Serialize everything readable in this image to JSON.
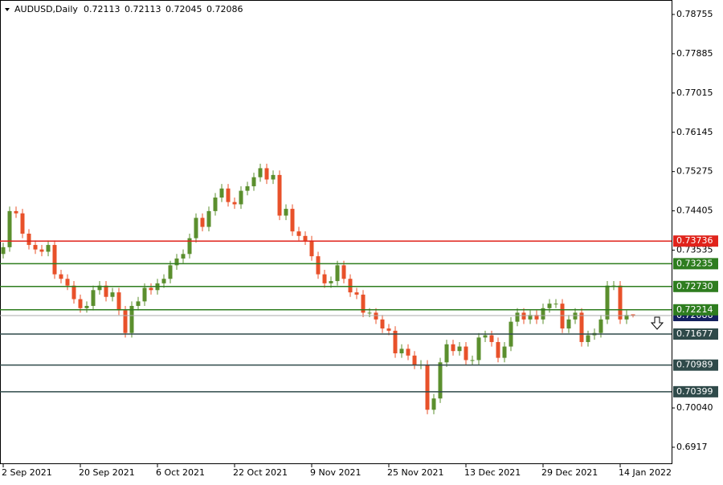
{
  "chart_data": {
    "type": "candlestick",
    "title": "AUDUSD,Daily",
    "categories": [
      "2 Sep 2021",
      null,
      null,
      null,
      null,
      null,
      null,
      null,
      null,
      null,
      null,
      null,
      "20 Sep 2021",
      null,
      null,
      null,
      null,
      null,
      null,
      null,
      null,
      null,
      null,
      null,
      "6 Oct 2021",
      null,
      null,
      null,
      null,
      null,
      null,
      null,
      null,
      null,
      null,
      null,
      "22 Oct 2021",
      null,
      null,
      null,
      null,
      null,
      null,
      null,
      null,
      null,
      null,
      null,
      "9 Nov 2021",
      null,
      null,
      null,
      null,
      null,
      null,
      null,
      null,
      null,
      null,
      null,
      "25 Nov 2021",
      null,
      null,
      null,
      null,
      null,
      null,
      null,
      null,
      null,
      null,
      null,
      "13 Dec 2021",
      null,
      null,
      null,
      null,
      null,
      null,
      null,
      null,
      null,
      null,
      null,
      "29 Dec 2021",
      null,
      null,
      null,
      null,
      null,
      null,
      null,
      null,
      null,
      null,
      null,
      "14 Jan 2022",
      null,
      null
    ],
    "open": [
      0.7345,
      0.736,
      0.744,
      0.7435,
      0.739,
      0.7365,
      0.7355,
      0.735,
      0.7365,
      0.73,
      0.729,
      0.7275,
      0.7245,
      0.7225,
      0.723,
      0.7265,
      0.7275,
      0.725,
      0.726,
      0.722,
      0.717,
      0.723,
      0.724,
      0.727,
      0.7265,
      0.728,
      0.729,
      0.732,
      0.7335,
      0.7345,
      0.738,
      0.7425,
      0.7405,
      0.744,
      0.747,
      0.749,
      0.746,
      0.7455,
      0.7485,
      0.7495,
      0.7515,
      0.7535,
      0.751,
      0.752,
      0.743,
      0.7445,
      0.7395,
      0.7385,
      0.7375,
      0.734,
      0.73,
      0.728,
      0.7285,
      0.732,
      0.729,
      0.726,
      0.7255,
      0.7215,
      0.7215,
      0.72,
      0.718,
      0.7175,
      0.7125,
      0.7135,
      0.712,
      0.71,
      0.71,
      0.7,
      0.7025,
      0.7105,
      0.7145,
      0.713,
      0.714,
      0.711,
      0.711,
      0.716,
      0.7165,
      0.715,
      0.7115,
      0.714,
      0.7195,
      0.7215,
      0.72,
      0.721,
      0.72,
      0.7225,
      0.7235,
      0.7235,
      0.718,
      0.72,
      0.7215,
      0.715,
      0.7165,
      0.717,
      0.72,
      0.7275,
      0.7275,
      0.72,
      0.72113
    ],
    "high": [
      0.737,
      0.745,
      0.745,
      0.7445,
      0.74,
      0.7375,
      0.7365,
      0.7375,
      0.7375,
      0.731,
      0.73,
      0.7285,
      0.7255,
      0.724,
      0.7275,
      0.7285,
      0.7285,
      0.727,
      0.727,
      0.723,
      0.724,
      0.725,
      0.728,
      0.728,
      0.729,
      0.73,
      0.733,
      0.7345,
      0.7355,
      0.739,
      0.7435,
      0.7435,
      0.745,
      0.748,
      0.75,
      0.75,
      0.747,
      0.7495,
      0.7505,
      0.7525,
      0.7545,
      0.7545,
      0.753,
      0.753,
      0.7455,
      0.7455,
      0.7405,
      0.7395,
      0.7385,
      0.735,
      0.731,
      0.7295,
      0.733,
      0.733,
      0.73,
      0.727,
      0.7265,
      0.7225,
      0.7225,
      0.721,
      0.719,
      0.7185,
      0.7145,
      0.7145,
      0.713,
      0.711,
      0.711,
      0.7035,
      0.7115,
      0.7155,
      0.7155,
      0.715,
      0.715,
      0.712,
      0.717,
      0.7175,
      0.7175,
      0.716,
      0.715,
      0.7205,
      0.7225,
      0.7225,
      0.722,
      0.722,
      0.7235,
      0.7245,
      0.7245,
      0.7245,
      0.721,
      0.7225,
      0.7225,
      0.7175,
      0.718,
      0.721,
      0.7285,
      0.7285,
      0.7285,
      0.722,
      0.72113
    ],
    "low": [
      0.7335,
      0.735,
      0.7425,
      0.738,
      0.7355,
      0.7345,
      0.734,
      0.734,
      0.729,
      0.728,
      0.7265,
      0.7235,
      0.7215,
      0.7215,
      0.722,
      0.7255,
      0.724,
      0.724,
      0.721,
      0.716,
      0.716,
      0.722,
      0.723,
      0.7255,
      0.7255,
      0.727,
      0.728,
      0.731,
      0.7325,
      0.7335,
      0.737,
      0.7395,
      0.7395,
      0.743,
      0.746,
      0.745,
      0.7445,
      0.7445,
      0.7475,
      0.7485,
      0.7505,
      0.75,
      0.75,
      0.742,
      0.742,
      0.7385,
      0.7375,
      0.7365,
      0.733,
      0.729,
      0.727,
      0.727,
      0.7275,
      0.728,
      0.725,
      0.7245,
      0.7205,
      0.7205,
      0.719,
      0.717,
      0.7165,
      0.7115,
      0.7115,
      0.711,
      0.709,
      0.709,
      0.699,
      0.699,
      0.7015,
      0.7095,
      0.712,
      0.712,
      0.71,
      0.71,
      0.71,
      0.715,
      0.714,
      0.7105,
      0.7105,
      0.713,
      0.7185,
      0.719,
      0.719,
      0.719,
      0.719,
      0.7215,
      0.7225,
      0.717,
      0.717,
      0.719,
      0.714,
      0.714,
      0.7155,
      0.716,
      0.719,
      0.7265,
      0.719,
      0.719,
      0.72045
    ],
    "close": [
      0.736,
      0.744,
      0.7435,
      0.739,
      0.7365,
      0.7355,
      0.735,
      0.7365,
      0.73,
      0.729,
      0.7275,
      0.7245,
      0.7225,
      0.723,
      0.7265,
      0.7275,
      0.725,
      0.726,
      0.722,
      0.717,
      0.723,
      0.724,
      0.727,
      0.7265,
      0.728,
      0.729,
      0.732,
      0.7335,
      0.7345,
      0.738,
      0.7425,
      0.7405,
      0.744,
      0.747,
      0.749,
      0.746,
      0.7455,
      0.7485,
      0.7495,
      0.7515,
      0.7535,
      0.751,
      0.752,
      0.743,
      0.7445,
      0.7395,
      0.7385,
      0.7375,
      0.734,
      0.73,
      0.728,
      0.7285,
      0.732,
      0.729,
      0.726,
      0.7255,
      0.7215,
      0.7215,
      0.72,
      0.718,
      0.7175,
      0.7125,
      0.7135,
      0.712,
      0.71,
      0.71,
      0.7,
      0.7025,
      0.7105,
      0.7145,
      0.713,
      0.714,
      0.711,
      0.711,
      0.716,
      0.7165,
      0.715,
      0.7115,
      0.714,
      0.7195,
      0.7215,
      0.72,
      0.721,
      0.72,
      0.7225,
      0.7235,
      0.7235,
      0.718,
      0.72,
      0.7215,
      0.715,
      0.7165,
      0.717,
      0.72,
      0.7275,
      0.7275,
      0.72,
      0.721,
      0.72086
    ],
    "up_color": "#5b8f2e",
    "down_color": "#e8512a",
    "ylim": [
      0.68796,
      0.79075
    ],
    "yticks": [
      0.78755,
      0.77885,
      0.77015,
      0.76145,
      0.75275,
      0.74405,
      0.73535,
      {
        "value": 0.7004,
        "label": "0.70040"
      },
      0.6917
    ],
    "levels": [
      {
        "price": 0.73736,
        "color": "#e0231b"
      },
      {
        "price": 0.73235,
        "color": "#2e7d1f"
      },
      {
        "price": {
          "value": 0.7273,
          "label": "0.72730"
        },
        "color": "#2e7d1f"
      },
      {
        "price": 0.72214,
        "color": "#2e7d1f"
      },
      {
        "price": 0.71677,
        "color": "#2f4a4a"
      },
      {
        "price": 0.70989,
        "color": "#2f4a4a"
      },
      {
        "price": 0.70399,
        "color": "#2f4a4a"
      }
    ],
    "current_price": 0.72086,
    "current_color": "#14215e"
  }
}
